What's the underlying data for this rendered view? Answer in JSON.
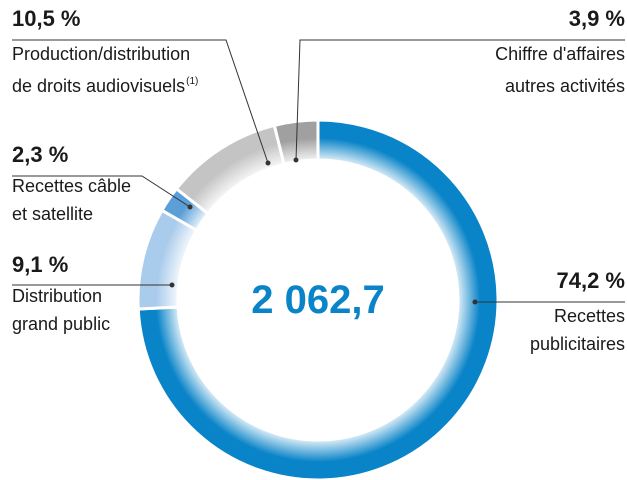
{
  "chart_data": {
    "type": "donut",
    "center_label": "2 062,7",
    "categories": [
      [
        "Recettes",
        "publicitaires"
      ],
      [
        "Distribution",
        "grand public"
      ],
      [
        "Recettes câble",
        "et satellite"
      ],
      [
        "Production/distribution",
        "de droits audiovisuels"
      ],
      [
        "Chiffre d'affaires",
        "autres activités"
      ]
    ],
    "category_notes": [
      null,
      null,
      null,
      "(1)",
      null
    ],
    "values": [
      74.2,
      9.1,
      2.3,
      10.5,
      3.9
    ],
    "value_labels": [
      "74,2 %",
      "9,1 %",
      "2,3 %",
      "10,5 %",
      "3,9 %"
    ],
    "colors": [
      "#0a84c8",
      "#a9cbec",
      "#5b9fd9",
      "#c4c4c4",
      "#a0a0a0"
    ]
  }
}
